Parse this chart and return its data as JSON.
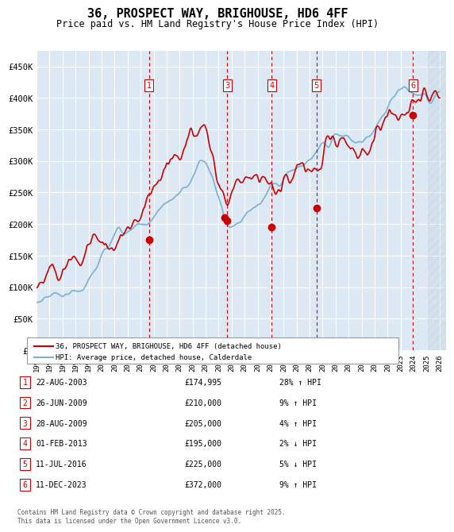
{
  "title": "36, PROSPECT WAY, BRIGHOUSE, HD6 4FF",
  "subtitle": "Price paid vs. HM Land Registry's House Price Index (HPI)",
  "xlabel_years": [
    "1995",
    "1996",
    "1997",
    "1998",
    "1999",
    "2000",
    "2001",
    "2002",
    "2003",
    "2004",
    "2005",
    "2006",
    "2007",
    "2008",
    "2009",
    "2010",
    "2011",
    "2012",
    "2013",
    "2014",
    "2015",
    "2016",
    "2017",
    "2018",
    "2019",
    "2020",
    "2021",
    "2022",
    "2023",
    "2024",
    "2025",
    "2026"
  ],
  "ylim": [
    0,
    475000
  ],
  "yticks": [
    0,
    50000,
    100000,
    150000,
    200000,
    250000,
    300000,
    350000,
    400000,
    450000
  ],
  "ytick_labels": [
    "£0",
    "£50K",
    "£100K",
    "£150K",
    "£200K",
    "£250K",
    "£300K",
    "£350K",
    "£400K",
    "£450K"
  ],
  "xmin": 1995.0,
  "xmax": 2026.5,
  "background_color": "#dce9f5",
  "plot_bg_color": "#dce9f5",
  "grid_color": "#ffffff",
  "hatch_color": "#c0cfe0",
  "red_line_color": "#cc0000",
  "blue_line_color": "#7ab0d4",
  "marker_color": "#cc0000",
  "dashed_vline_color": "#cc0000",
  "legend_label_red": "36, PROSPECT WAY, BRIGHOUSE, HD6 4FF (detached house)",
  "legend_label_blue": "HPI: Average price, detached house, Calderdale",
  "transactions": [
    {
      "num": 1,
      "date": "22-AUG-2003",
      "x": 2003.64,
      "price": 174995,
      "pct": "28%",
      "dir": "↑"
    },
    {
      "num": 2,
      "date": "26-JUN-2009",
      "x": 2009.49,
      "price": 210000,
      "pct": "9%",
      "dir": "↑"
    },
    {
      "num": 3,
      "date": "28-AUG-2009",
      "x": 2009.66,
      "price": 205000,
      "pct": "4%",
      "dir": "↑"
    },
    {
      "num": 4,
      "date": "01-FEB-2013",
      "x": 2013.08,
      "price": 195000,
      "pct": "2%",
      "dir": "↓"
    },
    {
      "num": 5,
      "date": "11-JUL-2016",
      "x": 2016.53,
      "price": 225000,
      "pct": "5%",
      "dir": "↓"
    },
    {
      "num": 6,
      "date": "11-DEC-2023",
      "x": 2023.94,
      "price": 372000,
      "pct": "9%",
      "dir": "↑"
    }
  ],
  "footer": "Contains HM Land Registry data © Crown copyright and database right 2025.\nThis data is licensed under the Open Government Licence v3.0.",
  "table_rows": [
    {
      "num": 1,
      "date": "22-AUG-2003",
      "price": "£174,995",
      "pct": "28% ↑ HPI"
    },
    {
      "num": 2,
      "date": "26-JUN-2009",
      "price": "£210,000",
      "pct": "9% ↑ HPI"
    },
    {
      "num": 3,
      "date": "28-AUG-2009",
      "price": "£205,000",
      "pct": "4% ↑ HPI"
    },
    {
      "num": 4,
      "date": "01-FEB-2013",
      "price": "£195,000",
      "pct": "2% ↓ HPI"
    },
    {
      "num": 5,
      "date": "11-JUL-2016",
      "price": "£225,000",
      "pct": "5% ↓ HPI"
    },
    {
      "num": 6,
      "date": "11-DEC-2023",
      "price": "£372,000",
      "pct": "9% ↑ HPI"
    }
  ]
}
